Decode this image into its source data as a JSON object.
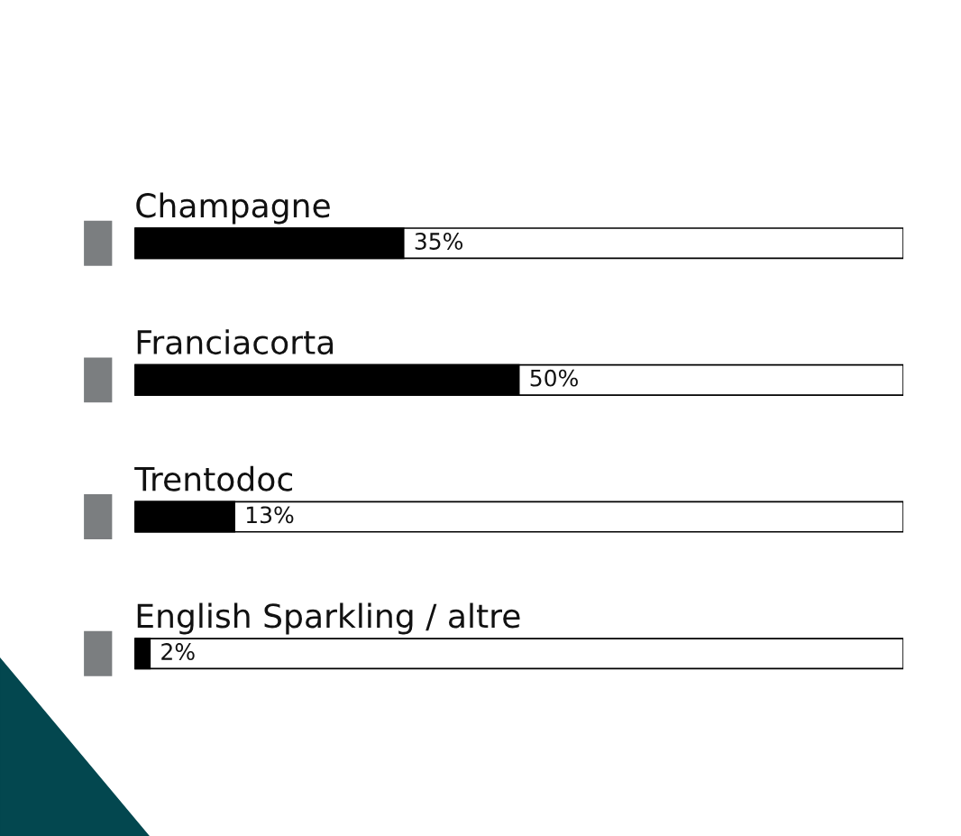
{
  "chart_data": {
    "type": "bar",
    "orientation": "horizontal",
    "categories": [
      "Champagne",
      "Franciacorta",
      "Trentodoc",
      "English Sparkling / altre"
    ],
    "values": [
      35,
      50,
      13,
      2
    ],
    "value_labels": [
      "35%",
      "50%",
      "13%",
      "2%"
    ],
    "color": "#000000",
    "xlim": [
      0,
      100
    ]
  }
}
